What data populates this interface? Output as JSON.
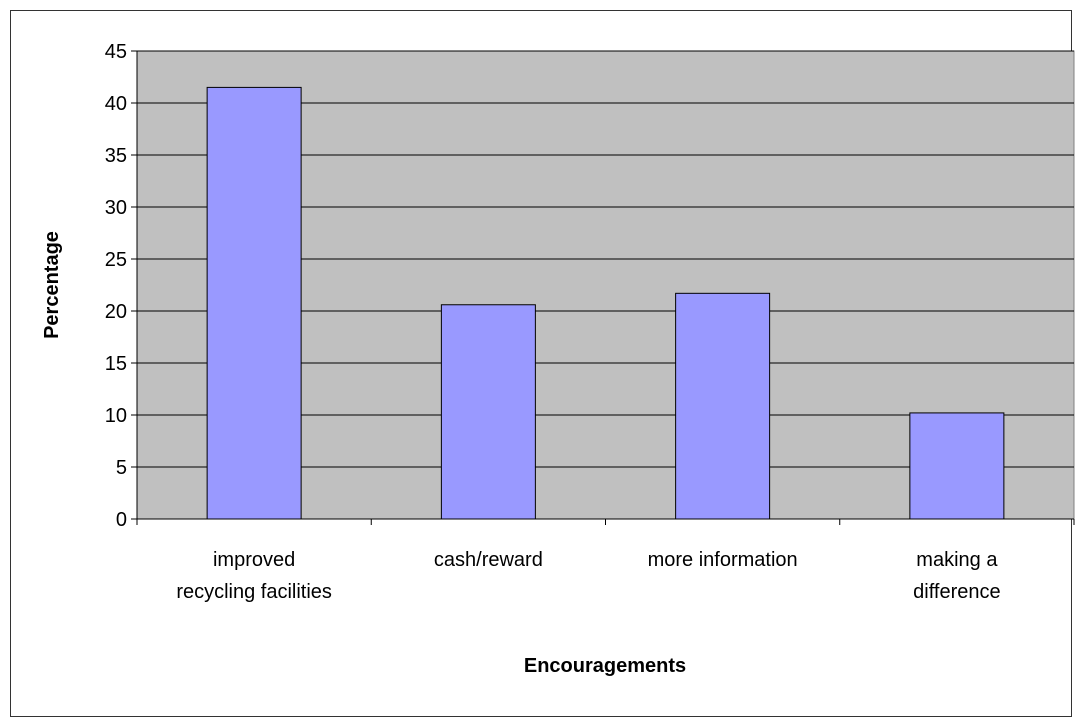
{
  "chart_data": {
    "type": "bar",
    "title": "",
    "xlabel": "Encouragements",
    "ylabel": "Percentage",
    "categories": [
      [
        "improved",
        "recycling facilities"
      ],
      [
        "cash/reward"
      ],
      [
        "more information"
      ],
      [
        "making a",
        "difference"
      ]
    ],
    "values": [
      41.5,
      20.6,
      21.7,
      10.2
    ],
    "ylim": [
      0,
      45
    ],
    "yticks": [
      "0",
      "5",
      "10",
      "15",
      "20",
      "25",
      "30",
      "35",
      "40",
      "45"
    ],
    "grid": true,
    "legend": "none",
    "colors": {
      "bar_fill": "#9999ff",
      "bar_stroke": "#000000",
      "plot_background": "#c0c0c0",
      "gridline": "#000000"
    }
  }
}
